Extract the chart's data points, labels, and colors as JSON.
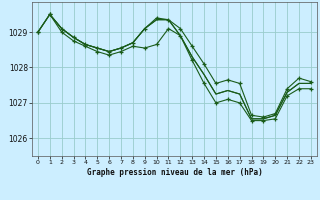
{
  "title": "Graphe pression niveau de la mer (hPa)",
  "background_color": "#cceeff",
  "grid_color": "#99cccc",
  "line_color": "#1a5c1a",
  "marker_color": "#1a5c1a",
  "xlim": [
    -0.5,
    23.5
  ],
  "ylim": [
    1025.5,
    1029.85
  ],
  "yticks": [
    1026,
    1027,
    1028,
    1029
  ],
  "xticks": [
    0,
    1,
    2,
    3,
    4,
    5,
    6,
    7,
    8,
    9,
    10,
    11,
    12,
    13,
    14,
    15,
    16,
    17,
    18,
    19,
    20,
    21,
    22,
    23
  ],
  "lines": [
    {
      "x": [
        0,
        1,
        2,
        3,
        4,
        5,
        6,
        7,
        8,
        9,
        10,
        11,
        12,
        13,
        14,
        15,
        16,
        17,
        18,
        19,
        20,
        21,
        22,
        23
      ],
      "y": [
        1029.0,
        1029.5,
        1029.1,
        1028.85,
        1028.65,
        1028.55,
        1028.45,
        1028.55,
        1028.7,
        1029.1,
        1029.4,
        1029.35,
        1029.1,
        1028.6,
        1028.1,
        1027.55,
        1027.65,
        1027.55,
        1026.65,
        1026.6,
        1026.7,
        1027.4,
        1027.7,
        1027.6
      ],
      "has_markers": true
    },
    {
      "x": [
        0,
        1,
        2,
        3,
        4,
        5,
        6,
        7,
        8,
        9,
        10,
        11,
        12,
        13,
        14,
        15,
        16,
        17,
        18,
        19,
        20,
        21,
        22,
        23
      ],
      "y": [
        1029.0,
        1029.5,
        1029.1,
        1028.85,
        1028.65,
        1028.55,
        1028.45,
        1028.55,
        1028.7,
        1029.1,
        1029.35,
        1029.35,
        1028.9,
        1028.3,
        1027.8,
        1027.25,
        1027.35,
        1027.25,
        1026.55,
        1026.55,
        1026.65,
        1027.3,
        1027.55,
        1027.55
      ],
      "has_markers": false
    },
    {
      "x": [
        1,
        2,
        3,
        4,
        5,
        6,
        7,
        8,
        9,
        10,
        11,
        12,
        13,
        14,
        15,
        16,
        17,
        18,
        19,
        20,
        21,
        22,
        23
      ],
      "y": [
        1029.5,
        1029.1,
        1028.85,
        1028.65,
        1028.55,
        1028.45,
        1028.55,
        1028.7,
        1029.1,
        1029.35,
        1029.35,
        1028.9,
        1028.3,
        1027.8,
        1027.25,
        1027.35,
        1027.25,
        1026.55,
        1026.55,
        1026.65,
        1027.3,
        1027.55,
        1027.55
      ],
      "has_markers": false
    },
    {
      "x": [
        0,
        1,
        2,
        3,
        4,
        5,
        6,
        7,
        8,
        9,
        10,
        11,
        12,
        13,
        14,
        15,
        16,
        17,
        18,
        19,
        20,
        21,
        22,
        23
      ],
      "y": [
        1029.0,
        1029.5,
        1029.0,
        1028.75,
        1028.6,
        1028.45,
        1028.35,
        1028.45,
        1028.6,
        1028.55,
        1028.65,
        1029.1,
        1028.9,
        1028.2,
        1027.55,
        1027.0,
        1027.1,
        1027.0,
        1026.5,
        1026.5,
        1026.55,
        1027.2,
        1027.4,
        1027.4
      ],
      "has_markers": true
    }
  ]
}
